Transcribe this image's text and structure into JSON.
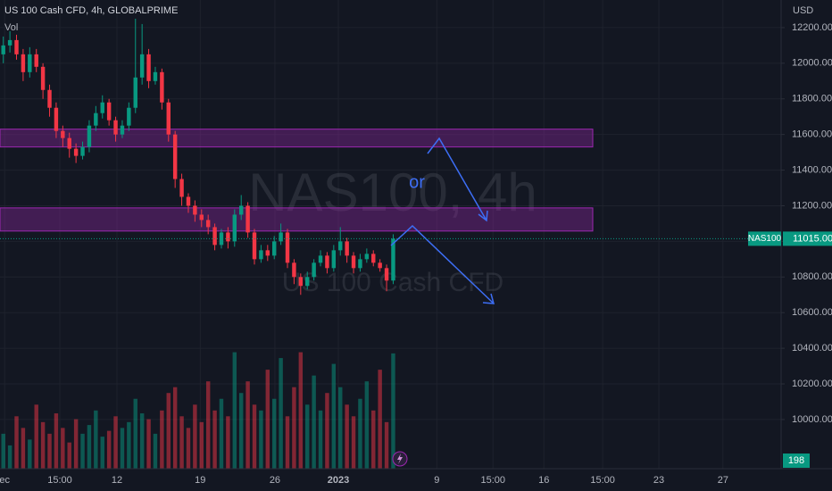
{
  "chart_data": {
    "type": "candlestick",
    "title": "US 100 Cash CFD, 4h, GLOBALPRIME",
    "watermark": [
      "NAS100, 4h",
      "US 100 Cash CFD"
    ],
    "y_axis_label": "USD",
    "annotation": "or",
    "symbol": "NAS100",
    "last_price": {
      "value": 11015,
      "label": "11015.00"
    },
    "up_color": "#089981",
    "down_color": "#f23645",
    "zone_color": "#9c27b0",
    "grid": true,
    "xlim": [
      -0.5,
      117.7
    ],
    "xticks": [
      {
        "value": 0.2,
        "label": "ec"
      },
      {
        "value": 8.55,
        "label": "15:00"
      },
      {
        "value": 17.2,
        "label": "12"
      },
      {
        "value": 29.8,
        "label": "19"
      },
      {
        "value": 41.1,
        "label": "26"
      },
      {
        "value": 50.7,
        "label": "2023"
      },
      {
        "value": 65.6,
        "label": "9"
      },
      {
        "value": 74.1,
        "label": "15:00"
      },
      {
        "value": 81.8,
        "label": "16"
      },
      {
        "value": 90.7,
        "label": "15:00"
      },
      {
        "value": 99.2,
        "label": "23"
      },
      {
        "value": 108.9,
        "label": "27"
      }
    ],
    "ylim": [
      9724,
      12355
    ],
    "yticks": [
      {
        "value": 10000,
        "label": "10000.00"
      },
      {
        "value": 10200,
        "label": "10200.00"
      },
      {
        "value": 10400,
        "label": "10400.00"
      },
      {
        "value": 10600,
        "label": "10600.00"
      },
      {
        "value": 10800,
        "label": "10800.00"
      },
      {
        "value": 11000,
        "label": "11000.00"
      },
      {
        "value": 11200,
        "label": "11200.00"
      },
      {
        "value": 11400,
        "label": "11400.00"
      },
      {
        "value": 11600,
        "label": "11600.00"
      },
      {
        "value": 11800,
        "label": "11800.00"
      },
      {
        "value": 12000,
        "label": "12000.00"
      },
      {
        "value": 12200,
        "label": "12200.00"
      }
    ],
    "zones": [
      {
        "top": 11630,
        "bottom": 11530
      },
      {
        "top": 11188,
        "bottom": 11058
      }
    ],
    "open": [
      12050,
      12100,
      12130,
      12050,
      11950,
      12050,
      11980,
      11850,
      11750,
      11620,
      11580,
      11520,
      11480,
      11530,
      11650,
      11720,
      11780,
      11680,
      11600,
      11650,
      11750,
      11920,
      12050,
      11900,
      11950,
      11780,
      11600,
      11350,
      11250,
      11200,
      11150,
      11120,
      11080,
      10980,
      11050,
      11000,
      11150,
      11200,
      11050,
      10900,
      10950,
      10920,
      11000,
      11050,
      10880,
      10800,
      10750,
      10800,
      10880,
      10920,
      10850,
      10950,
      11000,
      10920,
      10850,
      10900,
      10930,
      10880,
      10850,
      10780
    ],
    "high": [
      12150,
      12180,
      12160,
      12080,
      12090,
      12080,
      12000,
      11880,
      11780,
      11650,
      11610,
      11550,
      11560,
      11680,
      11760,
      11820,
      11800,
      11700,
      11680,
      11780,
      12250,
      12220,
      12080,
      11980,
      11970,
      11800,
      11620,
      11380,
      11270,
      11230,
      11180,
      11150,
      11100,
      11070,
      11080,
      11180,
      11260,
      11220,
      11070,
      10980,
      10980,
      11030,
      11100,
      11070,
      10900,
      10820,
      10830,
      10900,
      10950,
      10940,
      10980,
      11080,
      11020,
      10940,
      10930,
      10960,
      10950,
      10900,
      10870,
      11040
    ],
    "low": [
      12000,
      12060,
      12020,
      11900,
      11920,
      11950,
      11800,
      11700,
      11580,
      11530,
      11470,
      11440,
      11460,
      11500,
      11620,
      11690,
      11650,
      11560,
      11580,
      11620,
      11720,
      11880,
      11860,
      11880,
      11740,
      11560,
      11300,
      11200,
      11160,
      11110,
      11080,
      11040,
      10950,
      10960,
      10960,
      10970,
      11120,
      11020,
      10870,
      10880,
      10890,
      10900,
      10980,
      10850,
      10760,
      10700,
      10730,
      10780,
      10860,
      10820,
      10830,
      10920,
      10880,
      10820,
      10830,
      10880,
      10860,
      10830,
      10720,
      10760
    ],
    "close": [
      12100,
      12130,
      12050,
      11950,
      12050,
      11980,
      11850,
      11750,
      11620,
      11580,
      11520,
      11480,
      11530,
      11650,
      11720,
      11780,
      11680,
      11600,
      11650,
      11750,
      11920,
      12050,
      11900,
      11950,
      11780,
      11600,
      11350,
      11250,
      11200,
      11150,
      11120,
      11080,
      10980,
      11050,
      11000,
      11150,
      11200,
      11050,
      10900,
      10950,
      10920,
      11000,
      11050,
      10880,
      10800,
      10750,
      10800,
      10880,
      10920,
      10850,
      10950,
      11000,
      10920,
      10850,
      10900,
      10930,
      10880,
      10850,
      10780,
      11015
    ],
    "volume": {
      "name": "Vol",
      "vlim": [
        0,
        230
      ],
      "values": [
        60,
        40,
        90,
        70,
        50,
        110,
        80,
        60,
        95,
        70,
        45,
        85,
        60,
        75,
        100,
        55,
        65,
        90,
        70,
        80,
        120,
        95,
        85,
        60,
        100,
        130,
        140,
        90,
        70,
        110,
        80,
        150,
        100,
        120,
        90,
        200,
        130,
        150,
        110,
        100,
        170,
        120,
        190,
        90,
        140,
        200,
        110,
        160,
        100,
        130,
        180,
        140,
        110,
        90,
        120,
        150,
        100,
        170,
        80,
        198
      ]
    }
  }
}
